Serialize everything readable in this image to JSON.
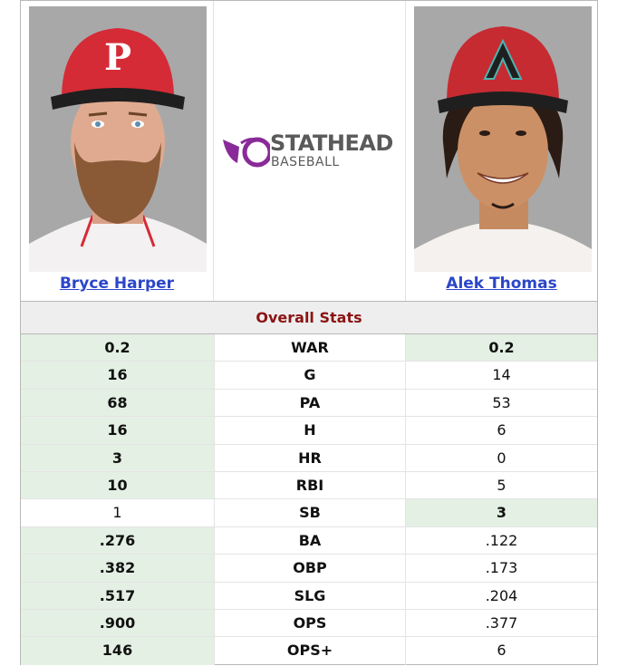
{
  "players": {
    "left": {
      "name": "Bryce Harper",
      "cap_color": "#d52b36",
      "cap_letter": "P"
    },
    "right": {
      "name": "Alek Thomas",
      "cap_color": "#c62b32",
      "cap_letter": "A"
    }
  },
  "logo": {
    "line1": "STATHEAD",
    "line2": "BASEBALL",
    "accent": "#8a2a99"
  },
  "section_title": "Overall Stats",
  "stats": [
    {
      "label": "WAR",
      "left": "0.2",
      "right": "0.2",
      "lead": "both"
    },
    {
      "label": "G",
      "left": "16",
      "right": "14",
      "lead": "left"
    },
    {
      "label": "PA",
      "left": "68",
      "right": "53",
      "lead": "left"
    },
    {
      "label": "H",
      "left": "16",
      "right": "6",
      "lead": "left"
    },
    {
      "label": "HR",
      "left": "3",
      "right": "0",
      "lead": "left"
    },
    {
      "label": "RBI",
      "left": "10",
      "right": "5",
      "lead": "left"
    },
    {
      "label": "SB",
      "left": "1",
      "right": "3",
      "lead": "right"
    },
    {
      "label": "BA",
      "left": ".276",
      "right": ".122",
      "lead": "left"
    },
    {
      "label": "OBP",
      "left": ".382",
      "right": ".173",
      "lead": "left"
    },
    {
      "label": "SLG",
      "left": ".517",
      "right": ".204",
      "lead": "left"
    },
    {
      "label": "OPS",
      "left": ".900",
      "right": ".377",
      "lead": "left"
    },
    {
      "label": "OPS+",
      "left": "146",
      "right": "6",
      "lead": "left"
    }
  ]
}
